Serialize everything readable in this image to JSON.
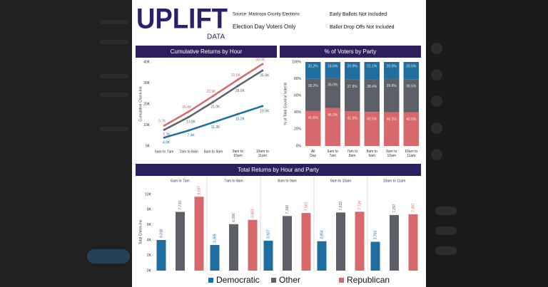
{
  "header": {
    "logo": "UPLIFT",
    "logo_sub": "DATA",
    "source": "Source: Maricopa County Elections",
    "scope": "Election Day Voters Only",
    "note_1": "Early Ballots Not Included",
    "note_2": "Ballot Drop Offs Not Included"
  },
  "chart_data": [
    {
      "type": "line",
      "title": "Cumulative Returns by Hour",
      "y_label": "Cumulative Check-Ins",
      "categories": [
        "6am to 7am",
        "7am to 8am",
        "8am to 9am",
        "9am to 10am",
        "10am to 11am"
      ],
      "series": [
        {
          "color": "#d7686b",
          "values": [
            9700,
            16400,
            23900,
            31600,
            39000
          ],
          "value_labels": [
            "9.7K",
            "16.4K",
            "23.9K",
            "31.6K",
            "39.0K"
          ]
        },
        {
          "color": "#5d6068",
          "values": [
            7700,
            13800,
            21000,
            28600,
            35900
          ],
          "value_labels": [
            "7.7K",
            "13.8K",
            "21.0K",
            "28.6K",
            "35.9K"
          ]
        },
        {
          "color": "#1f6e9f",
          "values": [
            4000,
            7400,
            11300,
            15200,
            19000
          ],
          "value_labels": [
            "4.0K",
            "7.4K",
            "11.3K",
            "15.2K",
            "19.0K"
          ]
        }
      ],
      "ylim": [
        0,
        40000
      ],
      "yticks": [
        {
          "value": 0,
          "label": "0K"
        },
        {
          "value": 10000,
          "label": "10K"
        },
        {
          "value": 20000,
          "label": "20K"
        },
        {
          "value": 30000,
          "label": "30K"
        },
        {
          "value": 40000,
          "label": "40K"
        }
      ]
    },
    {
      "type": "bar",
      "stacked": true,
      "title": "% of Voters by Party",
      "y_label": "% of Total Count of Voterid",
      "categories": [
        "All Day",
        "6am to 7am",
        "7am to 8am",
        "8am to 9am",
        "9am to 10am",
        "10am to 11am"
      ],
      "series": [
        {
          "color": "#d7686b",
          "values": [
            41.6,
            45.3,
            41.3,
            40.5,
            40.2,
            40.0
          ],
          "value_labels": [
            "41.6%",
            "45.3%",
            "41.3%",
            "40.5%",
            "40.2%",
            "40.0%"
          ]
        },
        {
          "color": "#5d6068",
          "values": [
            38.2,
            36.0,
            37.8,
            38.4,
            39.8,
            39.5
          ],
          "value_labels": [
            "38.2%",
            "36.0%",
            "37.8%",
            "38.4%",
            "39.8%",
            "39.5%"
          ]
        },
        {
          "color": "#1f6e9f",
          "values": [
            20.2,
            18.6,
            20.9,
            21.1,
            20.0,
            20.5
          ],
          "value_labels": [
            "20.2%",
            "18.6%",
            "20.9%",
            "21.1%",
            "20.0%",
            "20.5%"
          ]
        }
      ],
      "ylim": [
        0,
        100
      ],
      "yticks": [
        {
          "value": 0,
          "label": "0%"
        },
        {
          "value": 20,
          "label": "20%"
        },
        {
          "value": 40,
          "label": "40%"
        },
        {
          "value": 60,
          "label": "60%"
        },
        {
          "value": 80,
          "label": "80%"
        },
        {
          "value": 100,
          "label": "100%"
        }
      ]
    },
    {
      "type": "bar",
      "stacked": false,
      "title": "Total Returns by Hour and Party",
      "y_label": "Total Check-Ins",
      "legend": "bottom",
      "categories": [
        "6am to 7am",
        "7am to 8am",
        "8am to 9am",
        "9am to 10am",
        "10am to 11am"
      ],
      "series": [
        {
          "name": "Democratic",
          "color": "#1f6e9f",
          "values": [
            4018,
            3369,
            3927,
            3854,
            3783
          ],
          "value_labels": [
            "4,018",
            "3,369",
            "3,927",
            "3,854",
            "3,783"
          ]
        },
        {
          "name": "Other",
          "color": "#5d6068",
          "values": [
            7710,
            6096,
            7166,
            7632,
            7297
          ],
          "value_labels": [
            "7,710",
            "6,096",
            "7,166",
            "7,632",
            "7,297"
          ]
        },
        {
          "name": "Republican",
          "color": "#d7686b",
          "values": [
            9697,
            6661,
            7561,
            7726,
            7397
          ],
          "value_labels": [
            "9,697",
            "6,661",
            "7,561",
            "7,726",
            "7,397"
          ]
        }
      ],
      "ylim": [
        0,
        10000
      ],
      "yticks": [
        {
          "value": 0,
          "label": "0K"
        },
        {
          "value": 2000,
          "label": "2K"
        },
        {
          "value": 4000,
          "label": "4K"
        },
        {
          "value": 6000,
          "label": "6K"
        },
        {
          "value": 8000,
          "label": "8K"
        },
        {
          "value": 10000,
          "label": "10K"
        }
      ]
    }
  ]
}
